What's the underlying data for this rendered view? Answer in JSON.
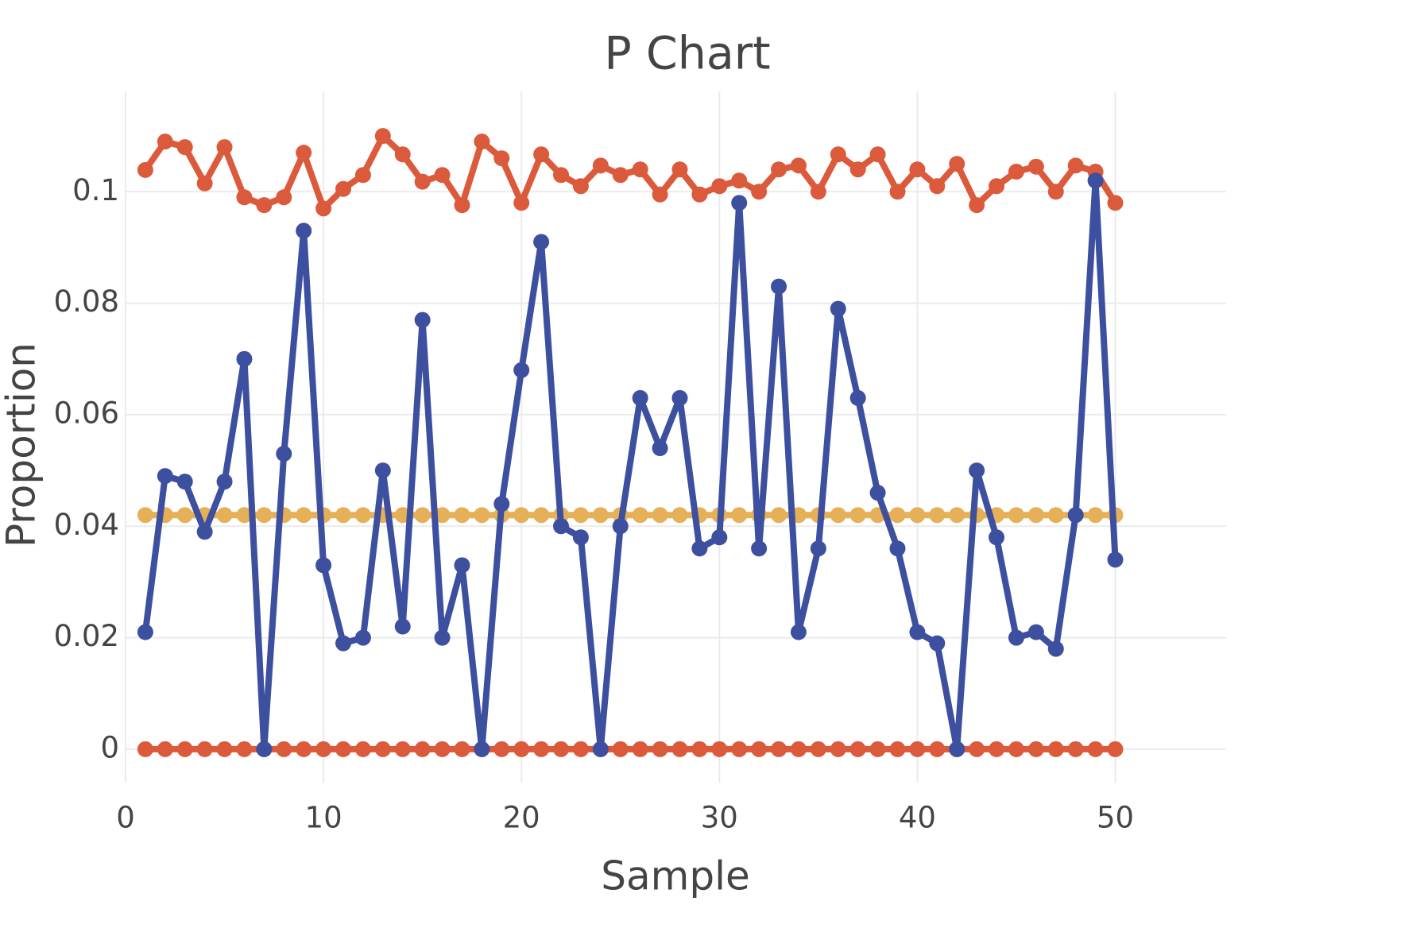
{
  "chart_data": {
    "type": "line",
    "title": "P Chart",
    "x_label": "Sample",
    "y_label": "Proportion",
    "x": [
      1,
      2,
      3,
      4,
      5,
      6,
      7,
      8,
      9,
      10,
      11,
      12,
      13,
      14,
      15,
      16,
      17,
      18,
      19,
      20,
      21,
      22,
      23,
      24,
      25,
      26,
      27,
      28,
      29,
      30,
      31,
      32,
      33,
      34,
      35,
      36,
      37,
      38,
      39,
      40,
      41,
      42,
      43,
      44,
      45,
      46,
      47,
      48,
      49,
      50
    ],
    "series": [
      {
        "color": "#dc5a3c",
        "values": [
          0.1039,
          0.109,
          0.108,
          0.1015,
          0.108,
          0.099,
          0.0976,
          0.099,
          0.107,
          0.097,
          0.1005,
          0.103,
          0.11,
          0.1067,
          0.1018,
          0.103,
          0.0976,
          0.109,
          0.106,
          0.098,
          0.1067,
          0.103,
          0.101,
          0.1047,
          0.103,
          0.104,
          0.0995,
          0.104,
          0.0995,
          0.101,
          0.102,
          0.1,
          0.104,
          0.1047,
          0.1,
          0.1067,
          0.104,
          0.1067,
          0.1,
          0.104,
          0.101,
          0.105,
          0.0976,
          0.101,
          0.1036,
          0.1045,
          0.1,
          0.1047,
          0.1036,
          0.098
        ]
      },
      {
        "color": "#e6b058",
        "values": [
          0.042,
          0.042,
          0.042,
          0.042,
          0.042,
          0.042,
          0.042,
          0.042,
          0.042,
          0.042,
          0.042,
          0.042,
          0.042,
          0.042,
          0.042,
          0.042,
          0.042,
          0.042,
          0.042,
          0.042,
          0.042,
          0.042,
          0.042,
          0.042,
          0.042,
          0.042,
          0.042,
          0.042,
          0.042,
          0.042,
          0.042,
          0.042,
          0.042,
          0.042,
          0.042,
          0.042,
          0.042,
          0.042,
          0.042,
          0.042,
          0.042,
          0.042,
          0.042,
          0.042,
          0.042,
          0.042,
          0.042,
          0.042,
          0.042,
          0.042
        ]
      },
      {
        "color": "#dc5a3c",
        "values": [
          0,
          0,
          0,
          0,
          0,
          0,
          0,
          0,
          0,
          0,
          0,
          0,
          0,
          0,
          0,
          0,
          0,
          0,
          0,
          0,
          0,
          0,
          0,
          0,
          0,
          0,
          0,
          0,
          0,
          0,
          0,
          0,
          0,
          0,
          0,
          0,
          0,
          0,
          0,
          0,
          0,
          0,
          0,
          0,
          0,
          0,
          0,
          0,
          0,
          0
        ]
      },
      {
        "color": "#3d4f9f",
        "values": [
          0.021,
          0.049,
          0.048,
          0.039,
          0.048,
          0.07,
          0,
          0.053,
          0.093,
          0.033,
          0.019,
          0.02,
          0.05,
          0.022,
          0.077,
          0.02,
          0.033,
          0,
          0.044,
          0.068,
          0.091,
          0.04,
          0.038,
          0,
          0.04,
          0.063,
          0.054,
          0.063,
          0.036,
          0.038,
          0.098,
          0.036,
          0.083,
          0.021,
          0.036,
          0.079,
          0.063,
          0.046,
          0.036,
          0.021,
          0.019,
          0,
          0.05,
          0.038,
          0.02,
          0.021,
          0.018,
          0.042,
          0.102,
          0.034
        ]
      }
    ],
    "xlim": [
      0,
      55.6
    ],
    "xticks": [
      0,
      10,
      20,
      30,
      40,
      50
    ],
    "ylim": [
      -0.006,
      0.118
    ],
    "yticks": [
      0,
      0.02,
      0.04,
      0.06,
      0.08,
      0.1
    ],
    "grid": true
  }
}
